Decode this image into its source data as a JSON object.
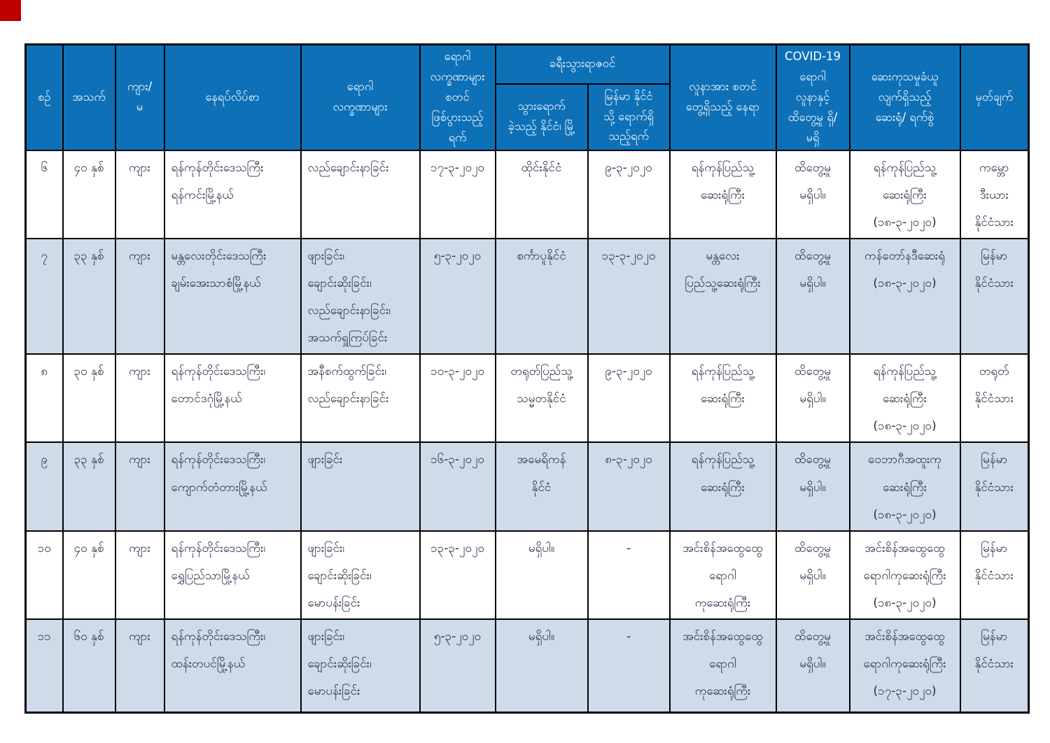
{
  "colors": {
    "header_bg": "#0e71b8",
    "header_fg": "#ffffff",
    "body_fg": "#1f2a40",
    "row_shade": "#cfdbe9",
    "border": "#000000",
    "corner_marker": "#c00000"
  },
  "table": {
    "header": {
      "no": "စဉ်",
      "age": "အသက်",
      "sex": "ကျား/\nမ",
      "address": "နေရပ်လိပ်စာ",
      "symptoms": "ရောဂါ\nလက္ခဏာများ",
      "onset": "ရောဂါ\nလက္ခဏာများ\nစတင်\nဖြစ်ပွားသည့်\nရက်",
      "travel_history": "ခရီးသွားရာဇဝင်",
      "country": "သွားရောက်\nခဲ့သည့် နိုင်ငံ၊ မြို့",
      "arrival": "မြန်မာ နိုင်ငံ\nသို့ ရောက်ရှိ\nသည့်ရက်",
      "place": "လူနာအား စတင်\nတွေ့ရှိသည့် နေရာ",
      "contact": "COVID-19\nရောဂါ\nလူနာနှင့်\nထိတွေ့မှု ရှိ/\nမရှိ",
      "hospital": "ဆေးကုသမှုခံယူ\nလျက်ရှိသည့်\nဆေးရုံ/ ရက်စွဲ",
      "remark": "မှတ်ချက်"
    },
    "rows": [
      {
        "no": "၆",
        "age": "၄၀ နှစ်",
        "sex": "ကျား",
        "address": "ရန်ကုန်တိုင်းဒေသကြီး\nရန်ကင်းမြို့နယ်",
        "symptoms": "လည်ချောင်းနာခြင်း",
        "onset": "၁၇-၃-၂၀၂၀",
        "country": "ထိုင်းနိုင်ငံ",
        "arrival": "၉-၃-၂၀၂၀",
        "place": "ရန်ကုန်ပြည်သူ့\nဆေးရုံကြီး",
        "contact": "ထိတွေ့မှု\nမရှိပါ။",
        "hospital": "ရန်ကုန်ပြည်သူ့\nဆေးရုံကြီး\n(၁၈-၃-၂၀၂၀)",
        "remark": "ကမ္ဘော\nဒီးယား\nနိုင်ငံသား"
      },
      {
        "no": "၇",
        "age": "၃၃ နှစ်",
        "sex": "ကျား",
        "address": "မန္တလေးတိုင်းဒေသကြီး\nချမ်းအေးသာစံမြို့နယ်",
        "symptoms": "ဖျားခြင်း၊\nချောင်းဆိုးခြင်း၊\nလည်ချောင်းနာခြင်း၊\nအသက်ရှူကြပ်ခြင်း",
        "onset": "၅-၃-၂၀၂၀",
        "country": "စင်္ကာပူနိုင်ငံ",
        "arrival": "၁၃-၃-၂၀၂၀",
        "place": "မန္တလေး\nပြည်သူ့ဆေးရုံကြီး",
        "contact": "ထိတွေ့မှု\nမရှိပါ။",
        "hospital": "ကန်တော်နဒီဆေးရုံ\n(၁၈-၃-၂၀၂၀)",
        "remark": "မြန်မာ\nနိုင်ငံသား"
      },
      {
        "no": "၈",
        "age": "၃၀ နှစ်",
        "sex": "ကျား",
        "address": "ရန်ကုန်တိုင်းဒေသကြီး၊\nတောင်ဒဂုံမြို့နယ်",
        "symptoms": "အနီစက်ထွက်ခြင်း၊\nလည်ချောင်းနာခြင်း",
        "onset": "၁၀-၃-၂၀၂၀",
        "country": "တရုတ်ပြည်သူ့\nသမ္မတနိုင်ငံ",
        "arrival": "၉-၃-၂၀၂၀",
        "place": "ရန်ကုန်ပြည်သူ့\nဆေးရုံကြီး",
        "contact": "ထိတွေ့မှု\nမရှိပါ။",
        "hospital": "ရန်ကုန်ပြည်သူ့\nဆေးရုံကြီး\n(၁၈-၃-၂၀၂၀)",
        "remark": "တရုတ်\nနိုင်ငံသား"
      },
      {
        "no": "၉",
        "age": "၃၃ နှစ်",
        "sex": "ကျား",
        "address": "ရန်ကုန်တိုင်းဒေသကြီး၊\nကျောက်တံတားမြို့နယ်",
        "symptoms": "ဖျားခြင်း",
        "onset": "၁၆-၃-၂၀၂၀",
        "country": "အမေရိကန်\nနိုင်ငံ",
        "arrival": "၈-၃-၂၀၂၀",
        "place": "ရန်ကုန်ပြည်သူ့\nဆေးရုံကြီး",
        "contact": "ထိတွေ့မှု\nမရှိပါ။",
        "hospital": "ဝေဘာဂီအထူးကု\nဆေးရုံကြီး\n(၁၈-၃-၂၀၂၀)",
        "remark": "မြန်မာ\nနိုင်ငံသား"
      },
      {
        "no": "၁၀",
        "age": "၄၀ နှစ်",
        "sex": "ကျား",
        "address": "ရန်ကုန်တိုင်းဒေသကြီး၊\nရွှေပြည်သာမြို့နယ်",
        "symptoms": "ဖျားခြင်း၊\nချောင်းဆိုးခြင်း၊\nမောပန်းခြင်း",
        "onset": "၁၃-၃-၂၀၂၀",
        "country": "မရှိပါ။",
        "arrival": "-",
        "place": "အင်းစိန်အထွေထွေ\nရောဂါ\nကုဆေးရုံကြီး",
        "contact": "ထိတွေ့မှု\nမရှိပါ။",
        "hospital": "အင်းစိန်အထွေထွေ\nရောဂါကုဆေးရုံကြီး\n(၁၈-၃-၂၀၂၀)",
        "remark": "မြန်မာ\nနိုင်ငံသား"
      },
      {
        "no": "၁၁",
        "age": "၆၀ နှစ်",
        "sex": "ကျား",
        "address": "ရန်ကုန်တိုင်းဒေသကြီး၊\nထန်းတပင်မြို့နယ်",
        "symptoms": "ဖျားခြင်း၊\nချောင်းဆိုးခြင်း၊\nမောပန်းခြင်း",
        "onset": "၅-၃-၂၀၂၀",
        "country": "မရှိပါ။",
        "arrival": "-",
        "place": "အင်းစိန်အထွေထွေ\nရောဂါ\nကုဆေးရုံကြီး",
        "contact": "ထိတွေ့မှု\nမရှိပါ။",
        "hospital": "အင်းစိန်အထွေထွေ\nရောဂါကုဆေးရုံကြီး\n(၁၇-၃-၂၀၂၀)",
        "remark": "မြန်မာ\nနိုင်ငံသား"
      }
    ]
  }
}
